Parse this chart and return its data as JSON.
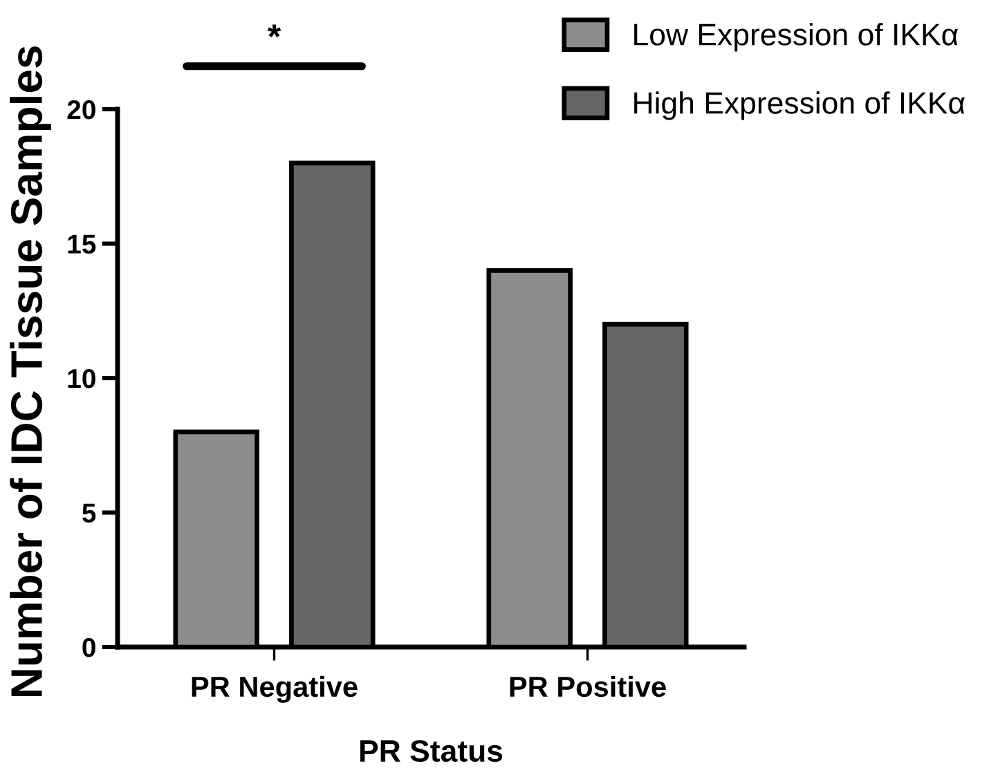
{
  "chart_data": {
    "type": "bar",
    "xlabel": "PR Status",
    "ylabel": "Number of IDC Tissue Samples",
    "categories": [
      "PR Negative",
      "PR Positive"
    ],
    "series": [
      {
        "name": "Low Expression of IKKα",
        "color": "#8c8c8c",
        "values": [
          8,
          14
        ]
      },
      {
        "name": "High Expression of IKKα",
        "color": "#666666",
        "values": [
          18,
          12
        ]
      }
    ],
    "ylim": [
      0,
      20
    ],
    "yticks": [
      0,
      5,
      10,
      15,
      20
    ],
    "grid": false,
    "legend": "top right",
    "annotations": [
      "*"
    ]
  }
}
